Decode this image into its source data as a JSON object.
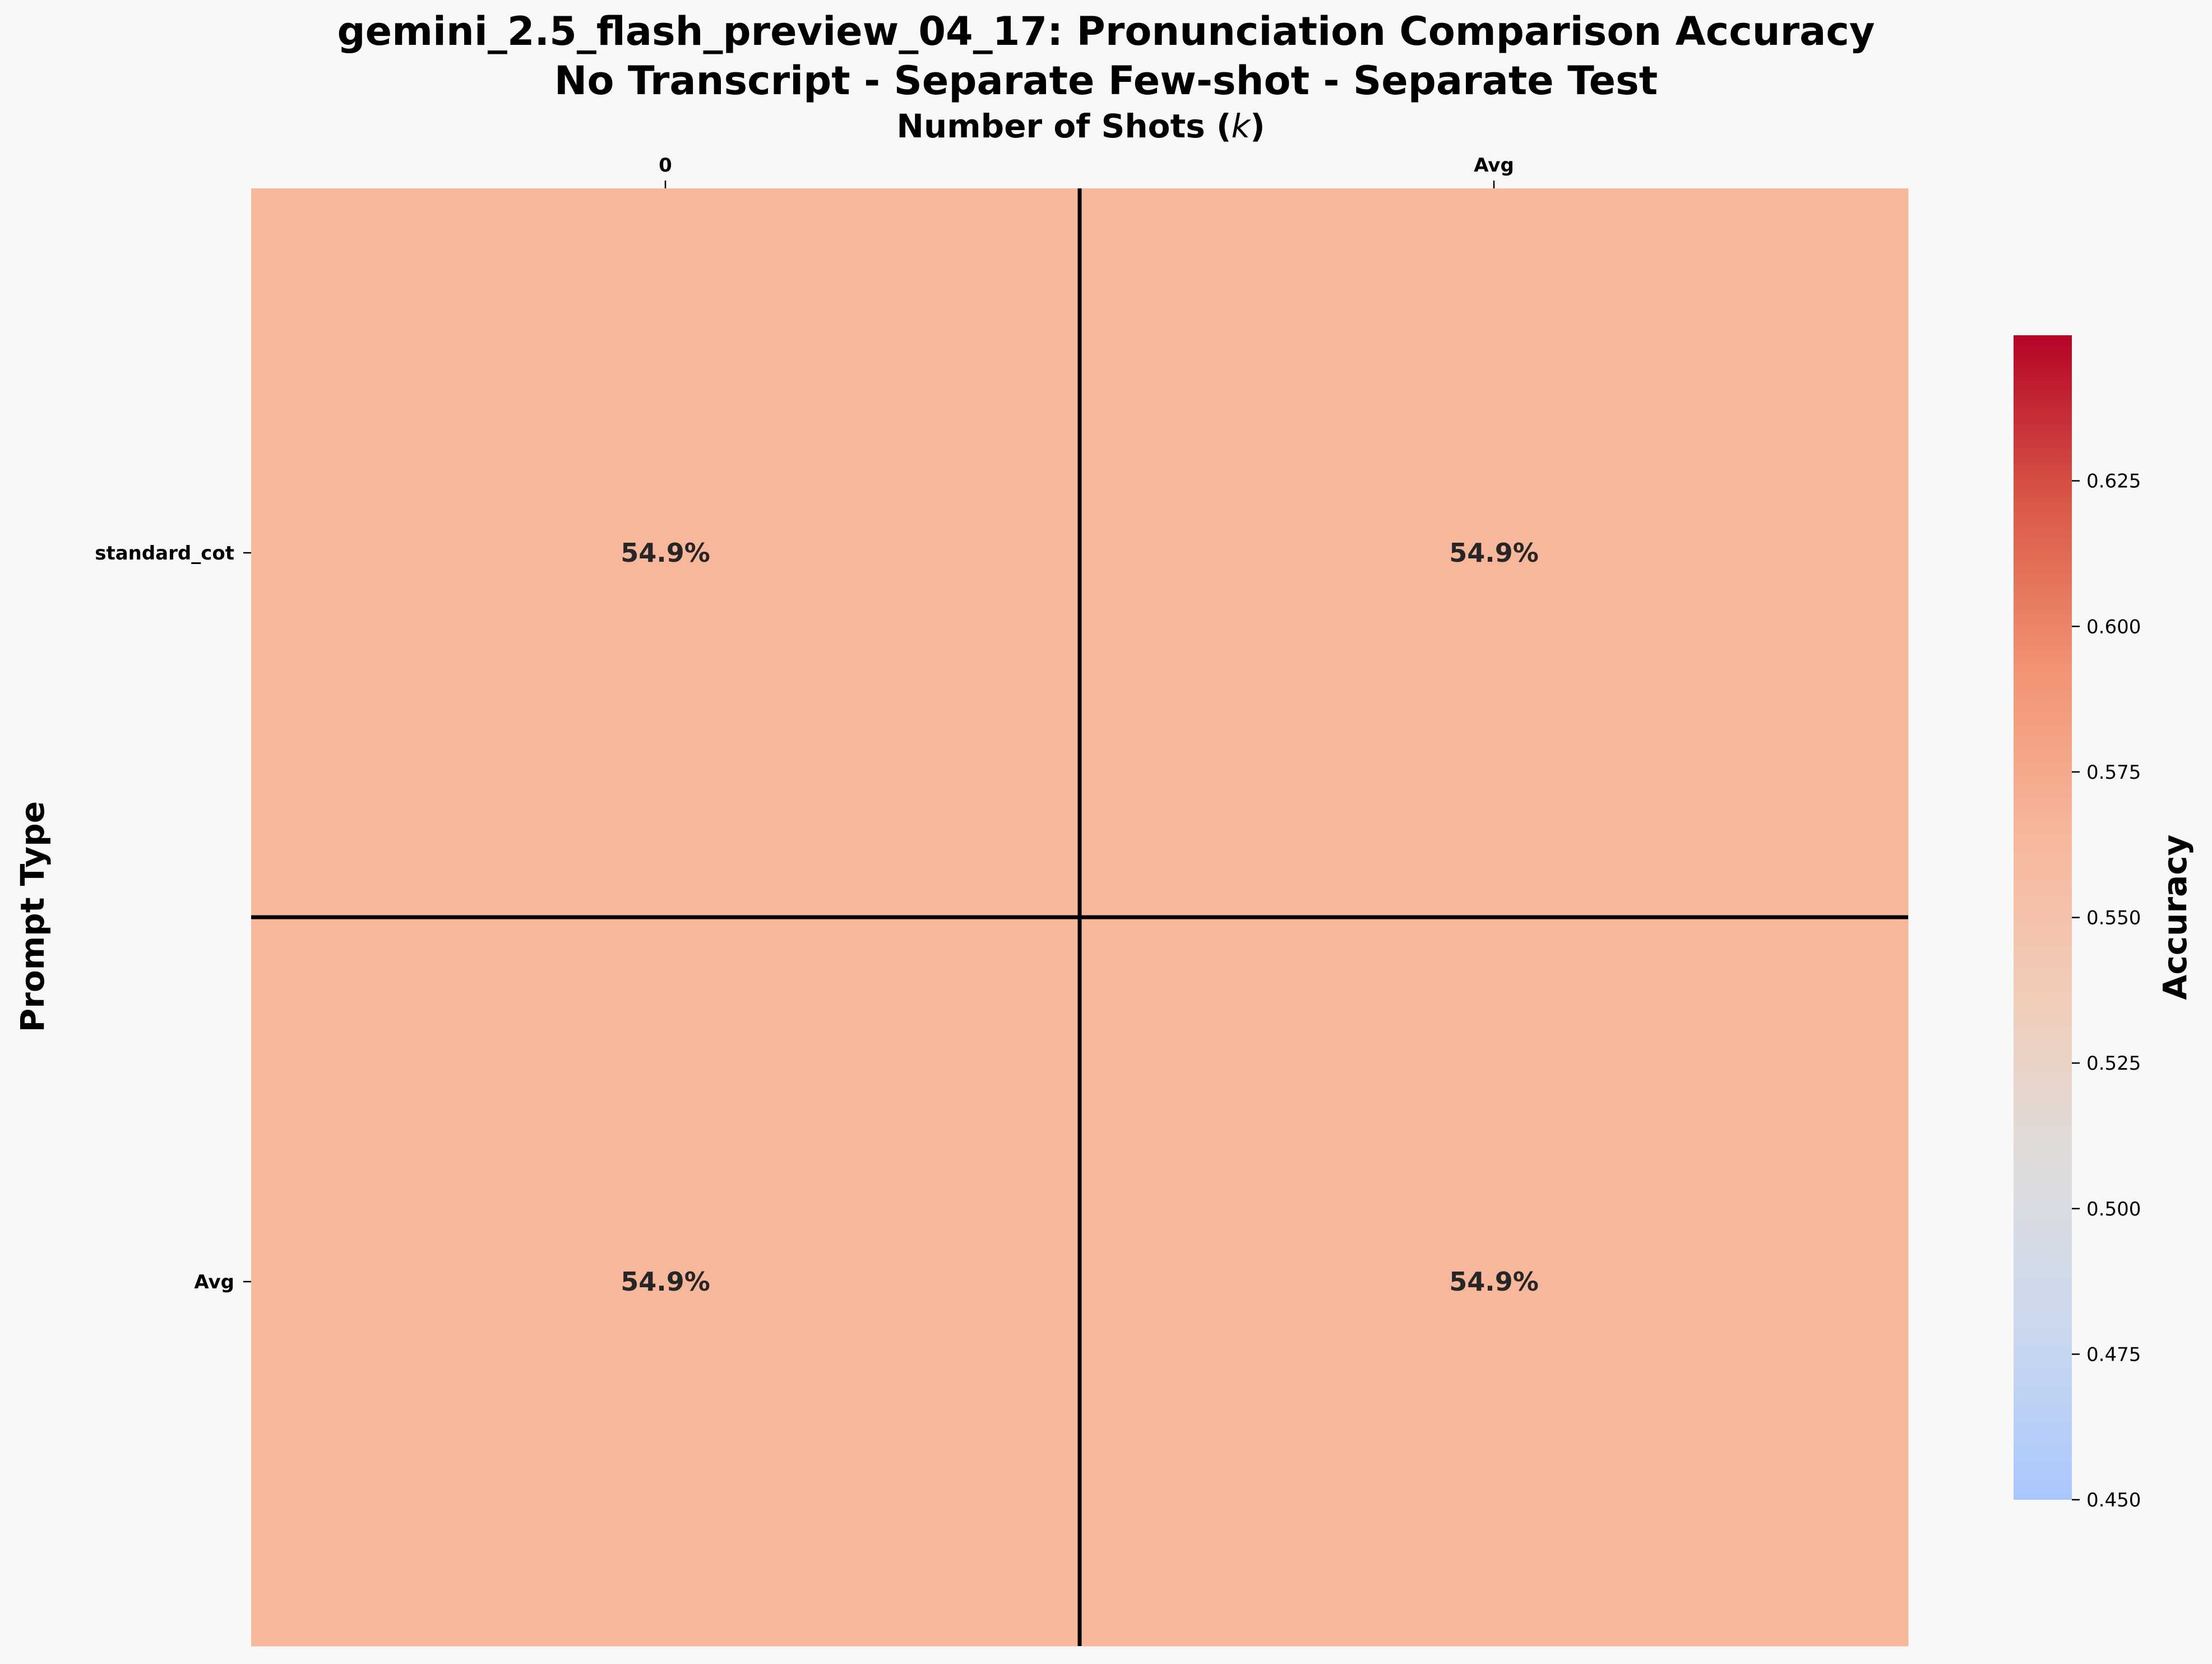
{
  "chart_data": {
    "type": "heatmap",
    "title": "gemini_2.5_flash_preview_04_17: Pronunciation Comparison Accuracy",
    "subtitle": "No Transcript - Separate Few-shot - Separate Test",
    "xlabel": "Number of Shots (k)",
    "xlabel_prefix": "Number of Shots (",
    "xlabel_var": "k",
    "xlabel_suffix": ")",
    "ylabel": "Prompt Type",
    "x_categories": [
      "0",
      "Avg"
    ],
    "y_categories": [
      "standard_cot",
      "Avg"
    ],
    "values": [
      [
        0.549,
        0.549
      ],
      [
        0.549,
        0.549
      ]
    ],
    "cell_labels": [
      [
        "54.9%",
        "54.9%"
      ],
      [
        "54.9%",
        "54.9%"
      ]
    ],
    "cell_color": "#f7b79b",
    "separator_lines": "after last data row and column",
    "colorbar": {
      "label": "Accuracy",
      "min": 0.45,
      "max": 0.65,
      "ticks": [
        "0.450",
        "0.475",
        "0.500",
        "0.525",
        "0.550",
        "0.575",
        "0.600",
        "0.625"
      ],
      "colormap": "coolwarm",
      "colors": [
        "#aac7fd",
        "#cad8ef",
        "#dddcdc",
        "#f1cdba",
        "#f7b79b",
        "#f29274",
        "#d95847",
        "#b40426"
      ]
    }
  }
}
